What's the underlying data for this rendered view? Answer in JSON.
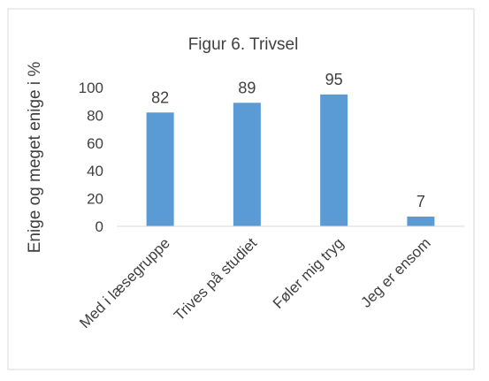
{
  "chart_data": {
    "type": "bar",
    "title": "Figur 6. Trivsel",
    "xlabel": "",
    "ylabel": "Enige og meget enige i %",
    "categories": [
      "Med i læsegruppe",
      "Trives på studiet",
      "Føler mig tryg",
      "Jeg er ensom"
    ],
    "values": [
      82,
      89,
      95,
      7
    ],
    "data_labels": [
      "82",
      "89",
      "95",
      "7"
    ],
    "yticks": [
      "0",
      "20",
      "40",
      "60",
      "80",
      "100"
    ],
    "ylim": [
      0,
      100
    ],
    "grid": false,
    "legend": "none",
    "bar_color": "#5b9bd5",
    "border_color": "#d9d9d9",
    "axis_color": "#d9d9d9"
  }
}
